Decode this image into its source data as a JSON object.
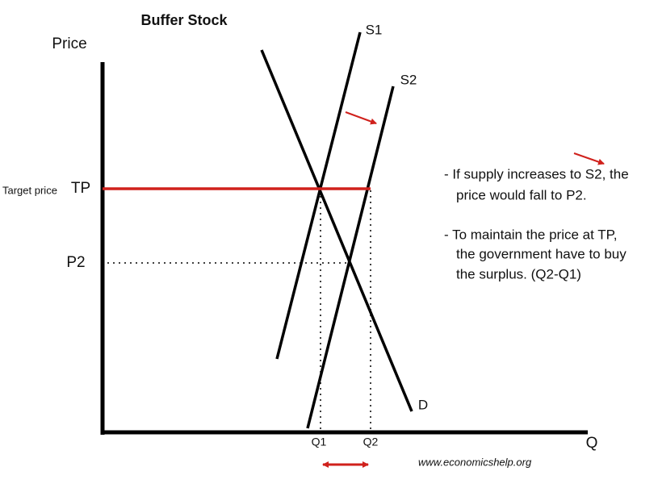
{
  "title": "Buffer Stock",
  "axes": {
    "y_label": "Price",
    "x_label": "Q"
  },
  "curves": {
    "s1": "S1",
    "s2": "S2",
    "d": "D"
  },
  "levels": {
    "target_caption": "Target price",
    "target": "TP",
    "p2": "P2"
  },
  "quantities": {
    "q1": "Q1",
    "q2": "Q2"
  },
  "notes": [
    [
      "- If supply increases to S2, the",
      "price would fall to P2."
    ],
    [
      "- To maintain the price at TP,",
      "the government have to buy",
      "the surplus. (Q2-Q1)"
    ]
  ],
  "source": "www.economicshelp.org"
}
